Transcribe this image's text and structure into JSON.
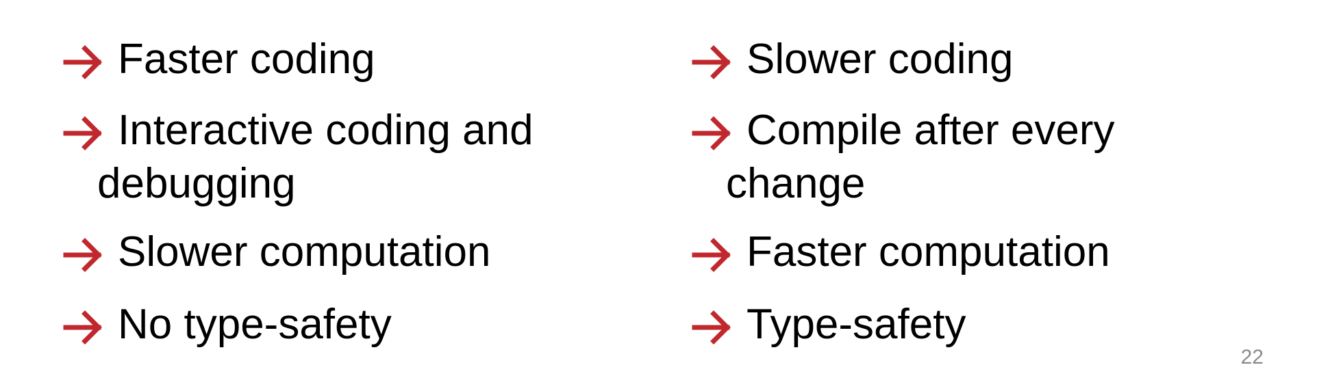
{
  "colors": {
    "arrow": "#C0282E",
    "text": "#000000",
    "slide_number": "#8A8A8A"
  },
  "icons": {
    "bullet": "arrow-right-icon"
  },
  "left_column": {
    "items": [
      {
        "label": "Faster coding"
      },
      {
        "label": "Interactive coding and debugging"
      },
      {
        "label": "Slower computation"
      },
      {
        "label": "No type-safety"
      }
    ]
  },
  "right_column": {
    "items": [
      {
        "label": "Slower coding"
      },
      {
        "label": "Compile after every change"
      },
      {
        "label": "Faster computation"
      },
      {
        "label": "Type-safety"
      }
    ]
  },
  "slide_number": "22"
}
